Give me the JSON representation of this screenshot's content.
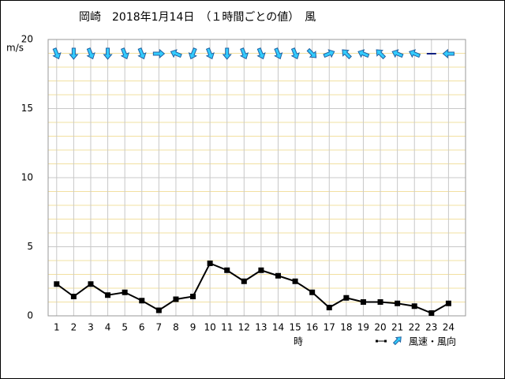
{
  "chart_data": {
    "type": "line",
    "title": "岡崎　2018年1月14日　（１時間ごとの値）　風",
    "y_unit": "m/s",
    "x_label": "時",
    "legend_label": "風速・風向",
    "x": [
      1,
      2,
      3,
      4,
      5,
      6,
      7,
      8,
      9,
      10,
      11,
      12,
      13,
      14,
      15,
      16,
      17,
      18,
      19,
      20,
      21,
      22,
      23,
      24
    ],
    "xlim": [
      0.5,
      25
    ],
    "series": [
      {
        "name": "風速",
        "color": "#000000",
        "values": [
          2.3,
          1.4,
          2.3,
          1.5,
          1.7,
          1.1,
          0.4,
          1.2,
          1.4,
          3.8,
          3.3,
          2.5,
          3.3,
          2.9,
          2.5,
          1.7,
          0.6,
          1.3,
          1.0,
          1.0,
          0.9,
          0.7,
          0.2,
          0.9
        ]
      }
    ],
    "directions": [
      337.5,
      0,
      337.5,
      0,
      337.5,
      337.5,
      270,
      112.5,
      22.5,
      337.5,
      0,
      337.5,
      337.5,
      337.5,
      337.5,
      315,
      247.5,
      135,
      112.5,
      135,
      112.5,
      112.5,
      null,
      90
    ],
    "arrow_color": "#33ccff",
    "ylim": [
      0,
      20
    ],
    "yticks": [
      0,
      5,
      10,
      15,
      20
    ],
    "minor_yticks": [
      1,
      2,
      3,
      4,
      6,
      7,
      8,
      9,
      11,
      12,
      13,
      14,
      16,
      17,
      18,
      19
    ],
    "grid": true
  }
}
